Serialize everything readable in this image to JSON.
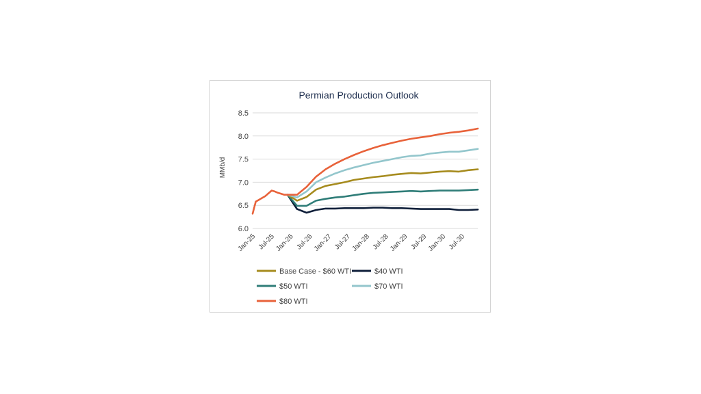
{
  "chart_data": {
    "type": "line",
    "title": "Permian Production Outlook",
    "xlabel": "",
    "ylabel": "MMb/d",
    "ylim": [
      6.0,
      8.5
    ],
    "yticks": [
      "6.0",
      "6.5",
      "7.0",
      "7.5",
      "8.0",
      "8.5"
    ],
    "xlim": [
      "Jan-25",
      "Dec-30"
    ],
    "x_tick_labels": [
      "Jan-25",
      "Jul-25",
      "Jan-26",
      "Jul-26",
      "Jan-27",
      "Jul-27",
      "Jan-28",
      "Jul-28",
      "Jan-29",
      "Jul-29",
      "Jan-30",
      "Jul-30"
    ],
    "grid": "horizontal",
    "legend_position": "bottom",
    "historical": {
      "x": [
        "Jan-25",
        "Feb-25",
        "Mar-25",
        "Apr-25",
        "May-25",
        "Jun-25",
        "Jul-25",
        "Aug-25",
        "Sep-25",
        "Oct-25",
        "Nov-25",
        "Dec-25"
      ],
      "values": [
        6.32,
        6.58,
        6.62,
        6.66,
        6.7,
        6.76,
        6.82,
        6.8,
        6.77,
        6.75,
        6.73,
        6.73
      ]
    },
    "series": [
      {
        "name": "Base Case - $60 WTI",
        "color": "#a68b1e",
        "x": [
          "Dec-25",
          "Mar-26",
          "Jun-26",
          "Sep-26",
          "Dec-26",
          "Mar-27",
          "Jun-27",
          "Sep-27",
          "Dec-27",
          "Mar-28",
          "Jun-28",
          "Sep-28",
          "Dec-28",
          "Mar-29",
          "Jun-29",
          "Sep-29",
          "Dec-29",
          "Mar-30",
          "Jun-30",
          "Sep-30",
          "Dec-30"
        ],
        "values": [
          6.73,
          6.6,
          6.68,
          6.84,
          6.92,
          6.96,
          7.0,
          7.05,
          7.08,
          7.11,
          7.13,
          7.16,
          7.18,
          7.2,
          7.19,
          7.21,
          7.23,
          7.24,
          7.23,
          7.26,
          7.28
        ]
      },
      {
        "name": "$40 WTI",
        "color": "#0f1f3a",
        "x": [
          "Dec-25",
          "Mar-26",
          "Jun-26",
          "Sep-26",
          "Dec-26",
          "Mar-27",
          "Jun-27",
          "Sep-27",
          "Dec-27",
          "Mar-28",
          "Jun-28",
          "Sep-28",
          "Dec-28",
          "Mar-29",
          "Jun-29",
          "Sep-29",
          "Dec-29",
          "Mar-30",
          "Jun-30",
          "Sep-30",
          "Dec-30"
        ],
        "values": [
          6.73,
          6.42,
          6.34,
          6.4,
          6.43,
          6.43,
          6.44,
          6.44,
          6.44,
          6.45,
          6.45,
          6.44,
          6.44,
          6.43,
          6.42,
          6.42,
          6.42,
          6.42,
          6.4,
          6.4,
          6.41
        ]
      },
      {
        "name": "$50 WTI",
        "color": "#2f7d78",
        "x": [
          "Dec-25",
          "Mar-26",
          "Jun-26",
          "Sep-26",
          "Dec-26",
          "Mar-27",
          "Jun-27",
          "Sep-27",
          "Dec-27",
          "Mar-28",
          "Jun-28",
          "Sep-28",
          "Dec-28",
          "Mar-29",
          "Jun-29",
          "Sep-29",
          "Dec-29",
          "Mar-30",
          "Jun-30",
          "Sep-30",
          "Dec-30"
        ],
        "values": [
          6.73,
          6.49,
          6.49,
          6.6,
          6.64,
          6.67,
          6.69,
          6.72,
          6.75,
          6.77,
          6.78,
          6.79,
          6.8,
          6.81,
          6.8,
          6.81,
          6.82,
          6.82,
          6.82,
          6.83,
          6.84
        ]
      },
      {
        "name": "$70 WTI",
        "color": "#93c6cc",
        "x": [
          "Dec-25",
          "Mar-26",
          "Jun-26",
          "Sep-26",
          "Dec-26",
          "Mar-27",
          "Jun-27",
          "Sep-27",
          "Dec-27",
          "Mar-28",
          "Jun-28",
          "Sep-28",
          "Dec-28",
          "Mar-29",
          "Jun-29",
          "Sep-29",
          "Dec-29",
          "Mar-30",
          "Jun-30",
          "Sep-30",
          "Dec-30"
        ],
        "values": [
          6.73,
          6.67,
          6.8,
          7.0,
          7.1,
          7.19,
          7.26,
          7.32,
          7.37,
          7.42,
          7.46,
          7.5,
          7.54,
          7.57,
          7.58,
          7.62,
          7.64,
          7.66,
          7.66,
          7.69,
          7.72
        ]
      },
      {
        "name": "$80 WTI",
        "color": "#e8623a",
        "x": [
          "Dec-25",
          "Mar-26",
          "Jun-26",
          "Sep-26",
          "Dec-26",
          "Mar-27",
          "Jun-27",
          "Sep-27",
          "Dec-27",
          "Mar-28",
          "Jun-28",
          "Sep-28",
          "Dec-28",
          "Mar-29",
          "Jun-29",
          "Sep-29",
          "Dec-29",
          "Mar-30",
          "Jun-30",
          "Sep-30",
          "Dec-30"
        ],
        "values": [
          6.73,
          6.73,
          6.9,
          7.12,
          7.28,
          7.4,
          7.5,
          7.59,
          7.67,
          7.74,
          7.8,
          7.85,
          7.9,
          7.94,
          7.97,
          8.0,
          8.04,
          8.07,
          8.09,
          8.12,
          8.16
        ]
      }
    ]
  }
}
